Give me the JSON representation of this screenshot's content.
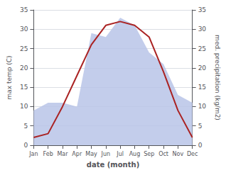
{
  "chart_data": {
    "type": "line",
    "xlabel": "date (month)",
    "ylabel": "max temp (C)",
    "y2label": "med. precipitation (kg/m2)",
    "categories": [
      "Jan",
      "Feb",
      "Mar",
      "Apr",
      "May",
      "Jun",
      "Jul",
      "Aug",
      "Sep",
      "Oct",
      "Nov",
      "Dec"
    ],
    "series": [
      {
        "type": "area",
        "axis": "y2",
        "color": "#b8c4e8",
        "values": [
          9,
          11,
          11,
          10,
          29,
          28,
          33,
          31,
          24,
          21,
          13,
          11
        ]
      },
      {
        "type": "line",
        "color": "#aa2222",
        "values": [
          2,
          3,
          10,
          18,
          26,
          31,
          32,
          31,
          28,
          19,
          9,
          2
        ]
      }
    ],
    "ylim": [
      0,
      35
    ],
    "yticks": [
      0,
      5,
      10,
      15,
      20,
      25,
      30,
      35
    ],
    "y2lim": [
      0,
      35
    ],
    "y2ticks": [
      0,
      5,
      10,
      15,
      20,
      25,
      30,
      35
    ],
    "grid": true
  }
}
